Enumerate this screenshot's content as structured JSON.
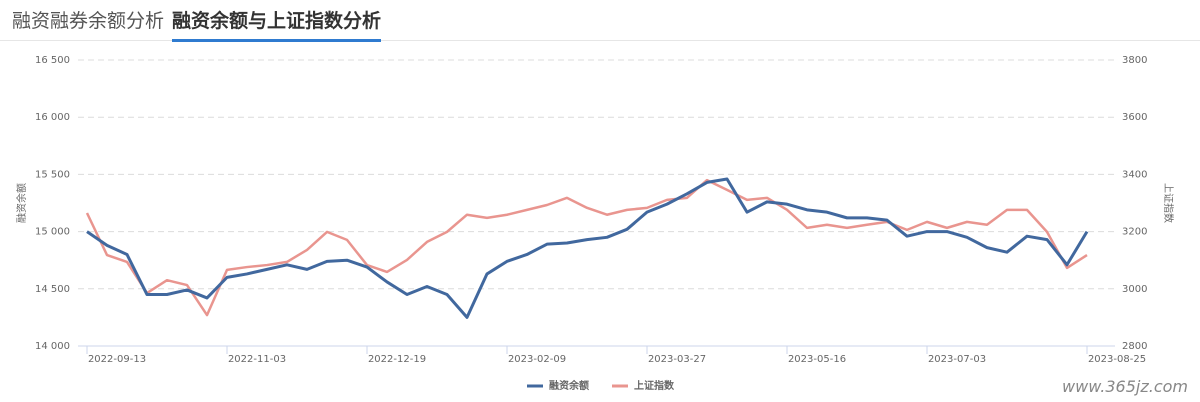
{
  "tabs": [
    "融资融券余额分析",
    "融资余额与上证指数分析"
  ],
  "watermark": "www.365jz.com",
  "chart_data": {
    "type": "line",
    "y_label": "融资余额",
    "y2_label": "上证指数",
    "categories": [
      "2022-09-13",
      null,
      null,
      null,
      null,
      null,
      null,
      "2022-11-03",
      null,
      null,
      null,
      null,
      null,
      null,
      "2022-12-19",
      null,
      null,
      null,
      null,
      null,
      null,
      "2023-02-09",
      null,
      null,
      null,
      null,
      null,
      null,
      "2023-03-27",
      null,
      null,
      null,
      null,
      null,
      null,
      "2023-05-16",
      null,
      null,
      null,
      null,
      null,
      null,
      "2023-07-03",
      null,
      null,
      null,
      null,
      null,
      null,
      null,
      "2023-08-25"
    ],
    "ylim": [
      14000,
      16500
    ],
    "yticks": [
      {
        "value": 14000,
        "label": "14 000"
      },
      {
        "value": 14500,
        "label": "14 500"
      },
      {
        "value": 15000,
        "label": "15 000"
      },
      {
        "value": 15500,
        "label": "15 500"
      },
      {
        "value": 16000,
        "label": "16 000"
      },
      {
        "value": 16500,
        "label": "16 500"
      }
    ],
    "y2lim": [
      2800,
      3800
    ],
    "y2ticks": [
      2800,
      3000,
      3200,
      3400,
      3600,
      3800
    ],
    "grid": true,
    "legend": "bottom",
    "series": [
      {
        "name": "融资余额",
        "color": "#41689e",
        "values": [
          15000,
          14880,
          14800,
          14450,
          14450,
          14490,
          14420,
          14600,
          14630,
          14670,
          14710,
          14670,
          14740,
          14750,
          14690,
          14560,
          14450,
          14520,
          14450,
          14250,
          14630,
          14740,
          14800,
          14890,
          14900,
          14930,
          14950,
          15020,
          15170,
          15240,
          15330,
          15430,
          15460,
          15170,
          15260,
          15240,
          15190,
          15170,
          15120,
          15120,
          15100,
          14960,
          15000,
          15000,
          14950,
          14860,
          14820,
          14960,
          14930,
          14710,
          15000
        ]
      },
      {
        "name": "上证指数",
        "color": "#e9958f",
        "axis": "y2",
        "values": [
          3265,
          3118,
          3094,
          2985,
          3030,
          3013,
          2908,
          3066,
          3076,
          3083,
          3094,
          3136,
          3199,
          3171,
          3083,
          3059,
          3101,
          3164,
          3199,
          3259,
          3248,
          3259,
          3276,
          3293,
          3318,
          3283,
          3259,
          3276,
          3283,
          3311,
          3318,
          3380,
          3346,
          3311,
          3318,
          3276,
          3213,
          3224,
          3213,
          3224,
          3234,
          3206,
          3234,
          3213,
          3234,
          3224,
          3276,
          3276,
          3199,
          3073,
          3118
        ]
      }
    ]
  }
}
